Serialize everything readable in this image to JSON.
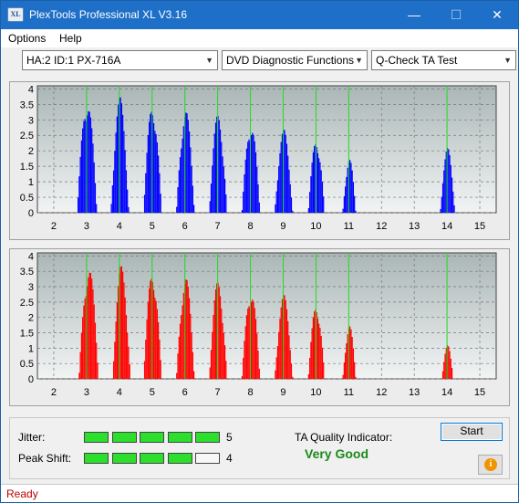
{
  "window": {
    "title": "PlexTools Professional XL V3.16",
    "icon_text": "XL",
    "minimize_glyph": "—",
    "maximize_glyph": "☐",
    "close_glyph": "✕"
  },
  "menu": {
    "options_label": "Options",
    "help_label": "Help"
  },
  "toolbar": {
    "drive_select": "HA:2 ID:1  PX-716A",
    "function_select": "DVD Diagnostic Functions",
    "test_select": "Q-Check TA Test"
  },
  "colors": {
    "jitter_bars": "#0000ff",
    "peak_bars": "#ff0000",
    "marker_lines": "#22dd22",
    "meter_on": "#2ddf2d",
    "quality_text": "#1b8a1b",
    "status_text": "#c00000"
  },
  "chart_data": [
    {
      "type": "bar",
      "series": [
        {
          "color": "#0000ff"
        }
      ],
      "yticks": [
        "0",
        "0.5",
        "1",
        "1.5",
        "2",
        "2.5",
        "3",
        "3.5",
        "4"
      ],
      "xticks": [
        "2",
        "3",
        "4",
        "5",
        "6",
        "7",
        "8",
        "9",
        "10",
        "11",
        "12",
        "13",
        "14",
        "15"
      ],
      "xlim": [
        1.5,
        15.5
      ],
      "ylim": [
        0,
        4.1
      ],
      "grid": true,
      "markers": [
        3,
        4,
        5,
        6,
        7,
        8,
        9,
        10,
        11,
        14
      ],
      "peaks": [
        {
          "center": 3.0,
          "height": 3.8,
          "width": 0.6
        },
        {
          "center": 4.0,
          "height": 3.75,
          "width": 0.55
        },
        {
          "center": 5.0,
          "height": 3.6,
          "width": 0.55
        },
        {
          "center": 6.0,
          "height": 3.4,
          "width": 0.55
        },
        {
          "center": 7.0,
          "height": 3.2,
          "width": 0.55
        },
        {
          "center": 8.0,
          "height": 3.0,
          "width": 0.55
        },
        {
          "center": 9.0,
          "height": 2.7,
          "width": 0.55
        },
        {
          "center": 10.0,
          "height": 2.45,
          "width": 0.5
        },
        {
          "center": 11.0,
          "height": 1.8,
          "width": 0.4
        },
        {
          "center": 14.0,
          "height": 2.1,
          "width": 0.45
        }
      ]
    },
    {
      "type": "bar",
      "series": [
        {
          "color": "#ff0000"
        }
      ],
      "yticks": [
        "0",
        "0.5",
        "1",
        "1.5",
        "2",
        "2.5",
        "3",
        "3.5",
        "4"
      ],
      "xticks": [
        "2",
        "3",
        "4",
        "5",
        "6",
        "7",
        "8",
        "9",
        "10",
        "11",
        "12",
        "13",
        "14",
        "15"
      ],
      "xlim": [
        1.5,
        15.5
      ],
      "ylim": [
        0,
        4.1
      ],
      "grid": true,
      "markers": [
        3,
        4,
        5,
        6,
        7,
        8,
        9,
        10,
        11,
        14
      ],
      "peaks": [
        {
          "center": 3.05,
          "height": 3.75,
          "width": 0.6
        },
        {
          "center": 4.05,
          "height": 3.7,
          "width": 0.55
        },
        {
          "center": 5.0,
          "height": 3.6,
          "width": 0.55
        },
        {
          "center": 6.0,
          "height": 3.4,
          "width": 0.55
        },
        {
          "center": 7.0,
          "height": 3.2,
          "width": 0.55
        },
        {
          "center": 8.0,
          "height": 3.0,
          "width": 0.55
        },
        {
          "center": 9.0,
          "height": 2.75,
          "width": 0.55
        },
        {
          "center": 10.0,
          "height": 2.5,
          "width": 0.5
        },
        {
          "center": 11.0,
          "height": 1.8,
          "width": 0.4
        },
        {
          "center": 14.0,
          "height": 1.1,
          "width": 0.35
        }
      ]
    }
  ],
  "metrics": {
    "jitter_label": "Jitter:",
    "jitter_value": "5",
    "jitter_level": 5,
    "peak_label": "Peak Shift:",
    "peak_value": "4",
    "peak_level": 4,
    "meter_max": 5,
    "ta_label": "TA Quality Indicator:",
    "ta_value": "Very Good"
  },
  "buttons": {
    "start_label": "Start",
    "info_icon": "info-icon"
  },
  "status": {
    "text": "Ready"
  }
}
